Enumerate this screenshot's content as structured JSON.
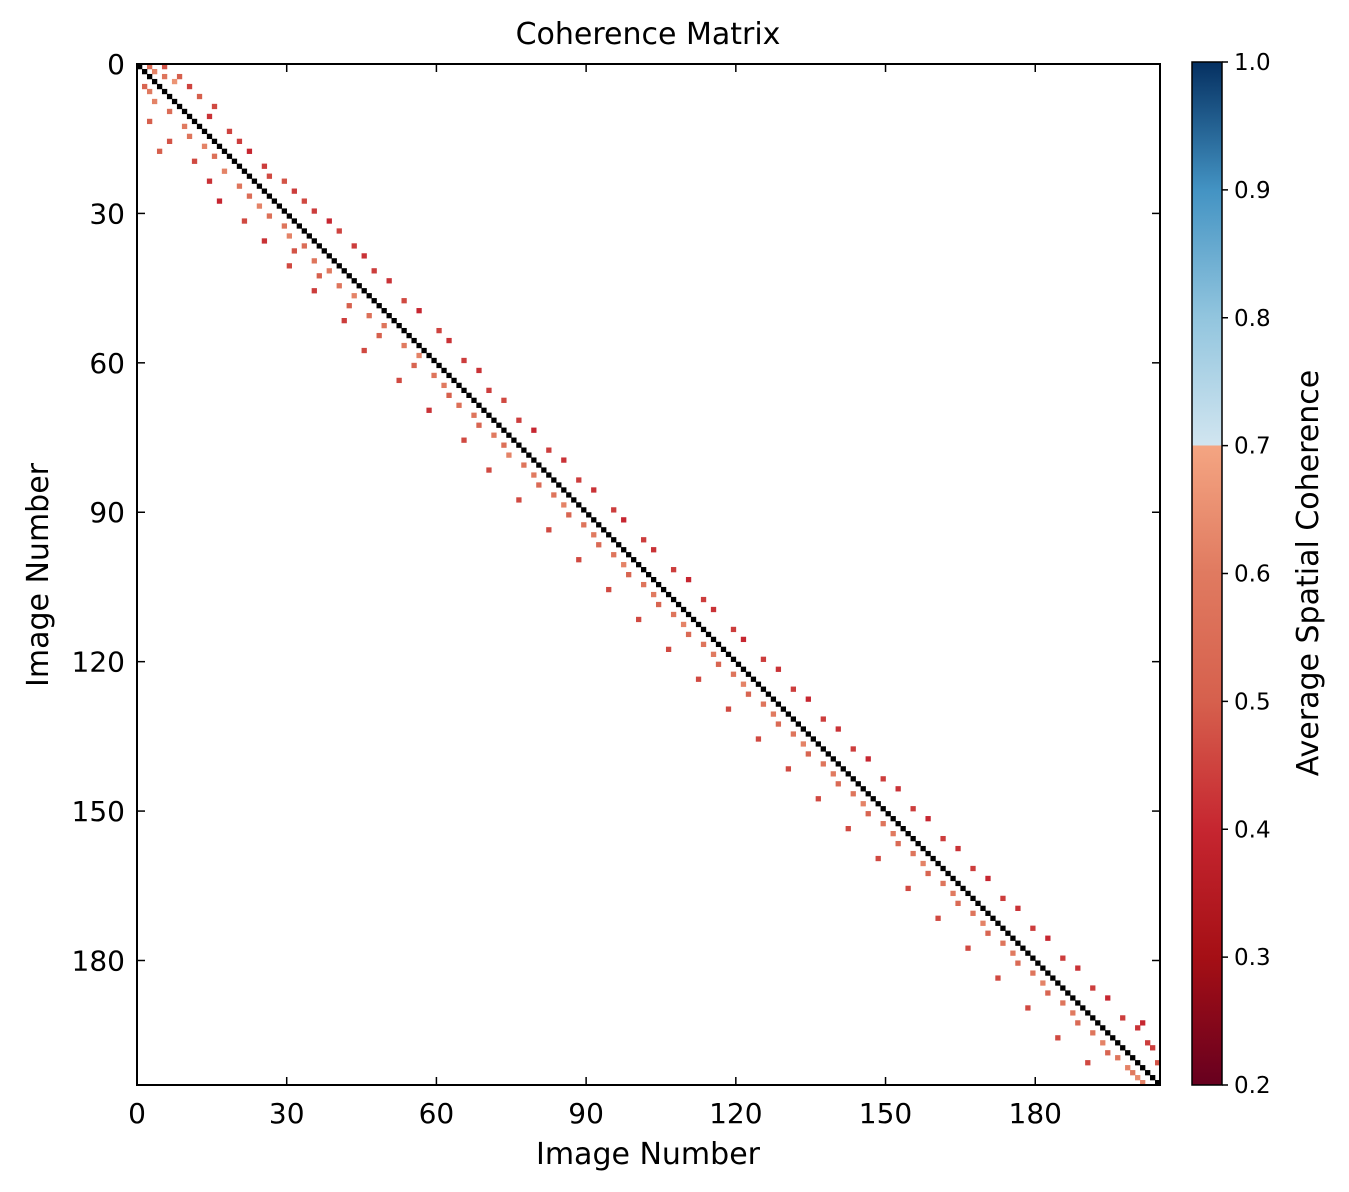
{
  "chart_data": {
    "type": "heatmap",
    "title": "Coherence Matrix",
    "xlabel": "Image Number",
    "ylabel": "Image Number",
    "matrix_size": 205,
    "xlim": [
      0,
      205
    ],
    "ylim": [
      205,
      0
    ],
    "x_ticks": [
      0,
      30,
      60,
      90,
      120,
      150,
      180
    ],
    "y_ticks": [
      0,
      30,
      60,
      90,
      120,
      150,
      180
    ],
    "grid": false,
    "colorbar": {
      "label": "Average Spatial Coherence",
      "range": [
        0.2,
        1.0
      ],
      "ticks": [
        "0.2",
        "0.3",
        "0.4",
        "0.5",
        "0.6",
        "0.7",
        "0.8",
        "0.9",
        "1.0"
      ],
      "colormap": "RdBu",
      "stops": [
        {
          "value": 0.2,
          "color": "#67001f"
        },
        {
          "value": 0.3,
          "color": "#a50f15"
        },
        {
          "value": 0.4,
          "color": "#c62630"
        },
        {
          "value": 0.5,
          "color": "#d6604d"
        },
        {
          "value": 0.6,
          "color": "#e07a60"
        },
        {
          "value": 0.7,
          "color": "#f4a582"
        },
        {
          "value": 0.7001,
          "color": "#d1e5f0"
        },
        {
          "value": 0.8,
          "color": "#92c5de"
        },
        {
          "value": 0.9,
          "color": "#4393c3"
        },
        {
          "value": 1.0,
          "color": "#053061"
        }
      ]
    },
    "diagonal": {
      "value": 1.0,
      "color": "#000000"
    },
    "cells": [
      [
        0,
        2,
        0.55
      ],
      [
        0,
        5,
        0.48
      ],
      [
        1,
        3,
        0.62
      ],
      [
        2,
        5,
        0.58
      ],
      [
        2,
        8,
        0.5
      ],
      [
        3,
        7,
        0.66
      ],
      [
        4,
        1,
        0.52
      ],
      [
        4,
        10,
        0.45
      ],
      [
        5,
        2,
        0.6
      ],
      [
        6,
        12,
        0.5
      ],
      [
        7,
        3,
        0.62
      ],
      [
        8,
        15,
        0.46
      ],
      [
        9,
        6,
        0.55
      ],
      [
        10,
        14,
        0.42
      ],
      [
        11,
        2,
        0.5
      ],
      [
        12,
        9,
        0.6
      ],
      [
        13,
        18,
        0.45
      ],
      [
        14,
        10,
        0.58
      ],
      [
        15,
        6,
        0.48
      ],
      [
        15,
        20,
        0.44
      ],
      [
        16,
        13,
        0.62
      ],
      [
        17,
        4,
        0.5
      ],
      [
        17,
        22,
        0.4
      ],
      [
        18,
        15,
        0.56
      ],
      [
        19,
        11,
        0.46
      ],
      [
        20,
        25,
        0.44
      ],
      [
        21,
        17,
        0.62
      ],
      [
        22,
        26,
        0.46
      ],
      [
        23,
        14,
        0.42
      ],
      [
        23,
        29,
        0.48
      ],
      [
        24,
        20,
        0.58
      ],
      [
        25,
        31,
        0.44
      ],
      [
        26,
        22,
        0.55
      ],
      [
        27,
        16,
        0.4
      ],
      [
        27,
        33,
        0.46
      ],
      [
        28,
        24,
        0.62
      ],
      [
        29,
        35,
        0.44
      ],
      [
        30,
        26,
        0.56
      ],
      [
        31,
        21,
        0.46
      ],
      [
        31,
        38,
        0.4
      ],
      [
        32,
        29,
        0.58
      ],
      [
        33,
        40,
        0.45
      ],
      [
        34,
        30,
        0.62
      ],
      [
        35,
        25,
        0.42
      ],
      [
        36,
        33,
        0.55
      ],
      [
        36,
        43,
        0.44
      ],
      [
        37,
        31,
        0.48
      ],
      [
        38,
        45,
        0.42
      ],
      [
        39,
        35,
        0.58
      ],
      [
        40,
        30,
        0.46
      ],
      [
        41,
        38,
        0.6
      ],
      [
        41,
        47,
        0.44
      ],
      [
        42,
        36,
        0.5
      ],
      [
        43,
        50,
        0.42
      ],
      [
        44,
        40,
        0.58
      ],
      [
        45,
        35,
        0.44
      ],
      [
        46,
        43,
        0.62
      ],
      [
        47,
        53,
        0.46
      ],
      [
        48,
        42,
        0.5
      ],
      [
        49,
        56,
        0.4
      ],
      [
        50,
        46,
        0.56
      ],
      [
        51,
        41,
        0.44
      ],
      [
        52,
        49,
        0.58
      ],
      [
        53,
        60,
        0.45
      ],
      [
        54,
        48,
        0.5
      ],
      [
        55,
        62,
        0.42
      ],
      [
        56,
        53,
        0.6
      ],
      [
        57,
        45,
        0.46
      ],
      [
        58,
        56,
        0.62
      ],
      [
        59,
        65,
        0.44
      ],
      [
        60,
        55,
        0.52
      ],
      [
        61,
        68,
        0.42
      ],
      [
        62,
        59,
        0.58
      ],
      [
        63,
        52,
        0.46
      ],
      [
        64,
        61,
        0.6
      ],
      [
        65,
        70,
        0.44
      ],
      [
        66,
        62,
        0.5
      ],
      [
        67,
        73,
        0.46
      ],
      [
        68,
        64,
        0.56
      ],
      [
        69,
        58,
        0.42
      ],
      [
        70,
        67,
        0.58
      ],
      [
        71,
        76,
        0.44
      ],
      [
        72,
        68,
        0.52
      ],
      [
        73,
        79,
        0.4
      ],
      [
        74,
        71,
        0.6
      ],
      [
        75,
        65,
        0.46
      ],
      [
        76,
        73,
        0.56
      ],
      [
        77,
        82,
        0.44
      ],
      [
        78,
        74,
        0.62
      ],
      [
        79,
        85,
        0.42
      ],
      [
        80,
        77,
        0.58
      ],
      [
        81,
        70,
        0.46
      ],
      [
        82,
        79,
        0.6
      ],
      [
        83,
        88,
        0.44
      ],
      [
        84,
        80,
        0.54
      ],
      [
        85,
        91,
        0.42
      ],
      [
        86,
        83,
        0.58
      ],
      [
        87,
        76,
        0.46
      ],
      [
        88,
        85,
        0.62
      ],
      [
        89,
        95,
        0.44
      ],
      [
        90,
        86,
        0.52
      ],
      [
        91,
        97,
        0.4
      ],
      [
        92,
        89,
        0.58
      ],
      [
        93,
        82,
        0.46
      ],
      [
        94,
        91,
        0.6
      ],
      [
        95,
        101,
        0.44
      ],
      [
        96,
        92,
        0.54
      ],
      [
        97,
        103,
        0.42
      ],
      [
        98,
        95,
        0.58
      ],
      [
        99,
        88,
        0.46
      ],
      [
        100,
        97,
        0.62
      ],
      [
        101,
        107,
        0.44
      ],
      [
        102,
        98,
        0.52
      ],
      [
        103,
        110,
        0.4
      ],
      [
        104,
        101,
        0.58
      ],
      [
        105,
        94,
        0.46
      ],
      [
        106,
        103,
        0.6
      ],
      [
        107,
        113,
        0.44
      ],
      [
        108,
        104,
        0.52
      ],
      [
        109,
        115,
        0.42
      ],
      [
        110,
        107,
        0.58
      ],
      [
        111,
        100,
        0.46
      ],
      [
        112,
        109,
        0.62
      ],
      [
        113,
        119,
        0.44
      ],
      [
        114,
        110,
        0.54
      ],
      [
        115,
        121,
        0.4
      ],
      [
        116,
        113,
        0.58
      ],
      [
        117,
        106,
        0.46
      ],
      [
        118,
        115,
        0.6
      ],
      [
        119,
        125,
        0.44
      ],
      [
        120,
        116,
        0.52
      ],
      [
        121,
        128,
        0.42
      ],
      [
        122,
        119,
        0.58
      ],
      [
        123,
        112,
        0.46
      ],
      [
        124,
        121,
        0.62
      ],
      [
        125,
        131,
        0.44
      ],
      [
        126,
        122,
        0.52
      ],
      [
        127,
        134,
        0.4
      ],
      [
        128,
        125,
        0.58
      ],
      [
        129,
        118,
        0.46
      ],
      [
        130,
        127,
        0.6
      ],
      [
        131,
        137,
        0.44
      ],
      [
        132,
        128,
        0.54
      ],
      [
        133,
        140,
        0.42
      ],
      [
        134,
        131,
        0.58
      ],
      [
        135,
        124,
        0.46
      ],
      [
        136,
        133,
        0.62
      ],
      [
        137,
        143,
        0.44
      ],
      [
        138,
        134,
        0.52
      ],
      [
        139,
        146,
        0.4
      ],
      [
        140,
        137,
        0.58
      ],
      [
        141,
        130,
        0.46
      ],
      [
        142,
        139,
        0.6
      ],
      [
        143,
        149,
        0.44
      ],
      [
        144,
        140,
        0.54
      ],
      [
        145,
        152,
        0.42
      ],
      [
        146,
        143,
        0.58
      ],
      [
        147,
        136,
        0.46
      ],
      [
        148,
        145,
        0.62
      ],
      [
        149,
        155,
        0.44
      ],
      [
        150,
        146,
        0.52
      ],
      [
        151,
        158,
        0.4
      ],
      [
        152,
        149,
        0.58
      ],
      [
        153,
        142,
        0.46
      ],
      [
        154,
        151,
        0.6
      ],
      [
        155,
        161,
        0.44
      ],
      [
        156,
        152,
        0.54
      ],
      [
        157,
        164,
        0.42
      ],
      [
        158,
        155,
        0.58
      ],
      [
        159,
        148,
        0.46
      ],
      [
        160,
        157,
        0.62
      ],
      [
        161,
        167,
        0.44
      ],
      [
        162,
        158,
        0.52
      ],
      [
        163,
        170,
        0.4
      ],
      [
        164,
        161,
        0.58
      ],
      [
        165,
        154,
        0.46
      ],
      [
        166,
        163,
        0.6
      ],
      [
        167,
        173,
        0.44
      ],
      [
        168,
        164,
        0.54
      ],
      [
        169,
        176,
        0.42
      ],
      [
        170,
        167,
        0.58
      ],
      [
        171,
        160,
        0.46
      ],
      [
        172,
        169,
        0.62
      ],
      [
        173,
        179,
        0.44
      ],
      [
        174,
        170,
        0.52
      ],
      [
        175,
        182,
        0.4
      ],
      [
        176,
        173,
        0.58
      ],
      [
        177,
        166,
        0.46
      ],
      [
        178,
        175,
        0.6
      ],
      [
        179,
        185,
        0.44
      ],
      [
        180,
        176,
        0.54
      ],
      [
        181,
        188,
        0.42
      ],
      [
        182,
        179,
        0.58
      ],
      [
        183,
        172,
        0.46
      ],
      [
        184,
        181,
        0.62
      ],
      [
        185,
        191,
        0.44
      ],
      [
        186,
        182,
        0.52
      ],
      [
        187,
        194,
        0.4
      ],
      [
        188,
        185,
        0.58
      ],
      [
        189,
        178,
        0.46
      ],
      [
        190,
        187,
        0.6
      ],
      [
        191,
        197,
        0.44
      ],
      [
        192,
        188,
        0.54
      ],
      [
        193,
        200,
        0.42
      ],
      [
        194,
        191,
        0.58
      ],
      [
        195,
        184,
        0.46
      ],
      [
        196,
        193,
        0.62
      ],
      [
        197,
        203,
        0.44
      ],
      [
        198,
        194,
        0.52
      ],
      [
        199,
        196,
        0.58
      ],
      [
        200,
        190,
        0.46
      ],
      [
        201,
        198,
        0.62
      ],
      [
        202,
        199,
        0.6
      ],
      [
        203,
        200,
        0.64
      ],
      [
        204,
        201,
        0.62
      ],
      [
        200,
        204,
        0.48
      ],
      [
        196,
        202,
        0.44
      ],
      [
        192,
        201,
        0.4
      ]
    ]
  }
}
